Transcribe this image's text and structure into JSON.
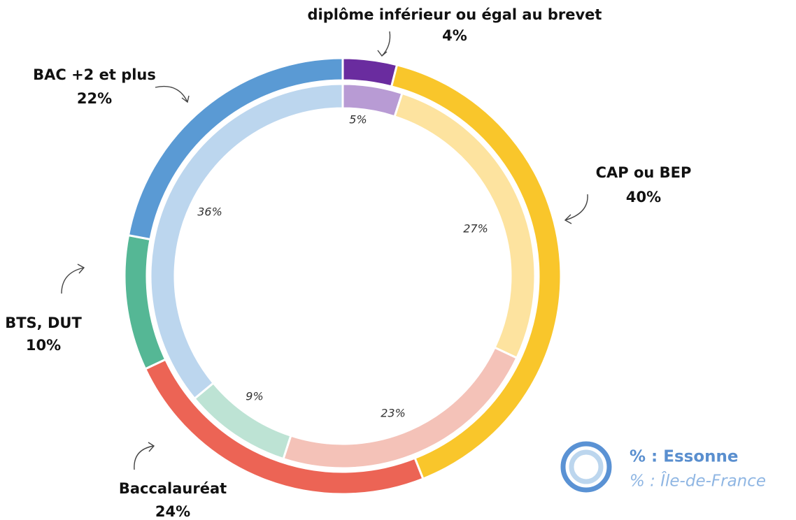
{
  "chart_data": {
    "type": "donut",
    "categories": [
      "diplôme inférieur  ou égal au brevet",
      "CAP ou BEP",
      "Baccalauréat",
      "BTS, DUT",
      "BAC +2 et plus"
    ],
    "series": [
      {
        "name": "% : Essonne",
        "color": [
          "#6a2c9f",
          "#f9c62b",
          "#ec6455",
          "#55b795",
          "#5a9ad4"
        ],
        "values": [
          4,
          40,
          24,
          10,
          22
        ],
        "value_labels": [
          "4%",
          "40%",
          "24%",
          "10%",
          "22%"
        ]
      },
      {
        "name": "% : Île-de-France",
        "color": [
          "#b89bd4",
          "#fde39f",
          "#f4c2b8",
          "#bde3d4",
          "#bcd6ee"
        ],
        "values": [
          5,
          27,
          23,
          9,
          36
        ],
        "value_labels": [
          "5%",
          "27%",
          "23%",
          "9%",
          "36%"
        ]
      }
    ]
  }
}
